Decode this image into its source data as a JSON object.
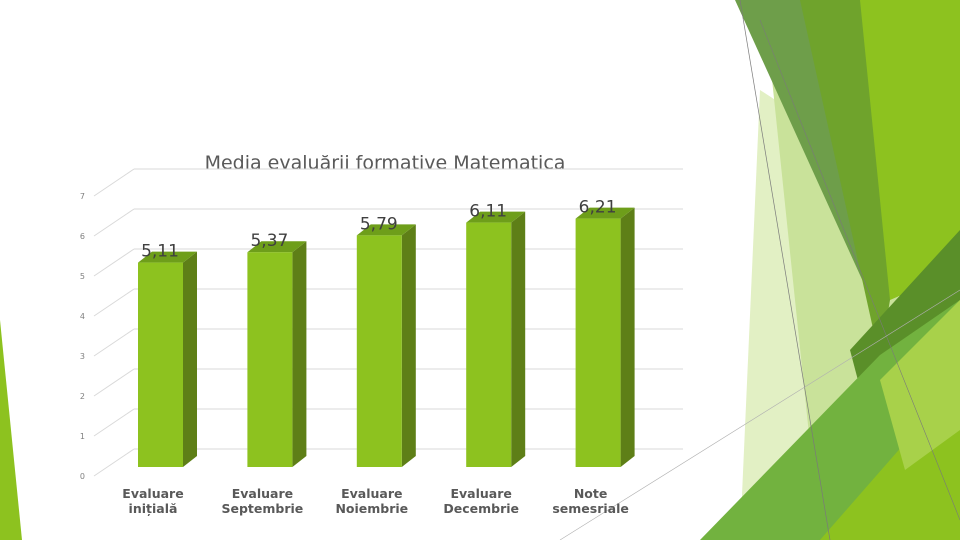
{
  "slide": {
    "accent_colors": [
      "#8DC21F",
      "#6FA32C",
      "#5A8F29",
      "#A8D14A",
      "#C9E29A",
      "#E2F0C4"
    ]
  },
  "chart_data": {
    "type": "bar",
    "style": "3d-column",
    "title": "Media evaluării formative Matematica",
    "categories": [
      [
        "Evaluare",
        "inițială"
      ],
      [
        "Evaluare",
        "Septembrie"
      ],
      [
        "Evaluare",
        "Noiembrie"
      ],
      [
        "Evaluare",
        "Decembrie"
      ],
      [
        "Note",
        "semesriale"
      ]
    ],
    "values": [
      5.11,
      5.37,
      5.79,
      6.11,
      6.21
    ],
    "value_labels": [
      "5,11",
      "5,37",
      "5,79",
      "6,11",
      "6,21"
    ],
    "ylim": [
      0,
      7
    ],
    "yticks": [
      "0",
      "1",
      "2",
      "3",
      "4",
      "5",
      "6",
      "7"
    ],
    "grid": true,
    "legend": "none",
    "colors": {
      "bar_front": "#8DC21F",
      "bar_top": "#6E9E1A",
      "bar_side": "#5E7F17",
      "grid": "#D9D9D9"
    }
  }
}
